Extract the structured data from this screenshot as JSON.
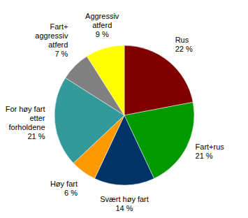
{
  "chart_data": {
    "type": "pie",
    "categories": [
      "Rus",
      "Fart+rus",
      "Svært høy fart",
      "Høy fart",
      "For høy fart\netter\nforholdene",
      "Fart+\naggressiv\natferd",
      "Aggressiv\natferd"
    ],
    "values": [
      22,
      21,
      14,
      6,
      21,
      7,
      9
    ],
    "value_labels": [
      "22 %",
      "21 %",
      "14 %",
      "6 %",
      "21 %",
      "7 %",
      "9 %"
    ],
    "colors": [
      "#800000",
      "#009900",
      "#003366",
      "#ff9900",
      "#339999",
      "#808080",
      "#ffff00"
    ],
    "data_labels": true
  }
}
